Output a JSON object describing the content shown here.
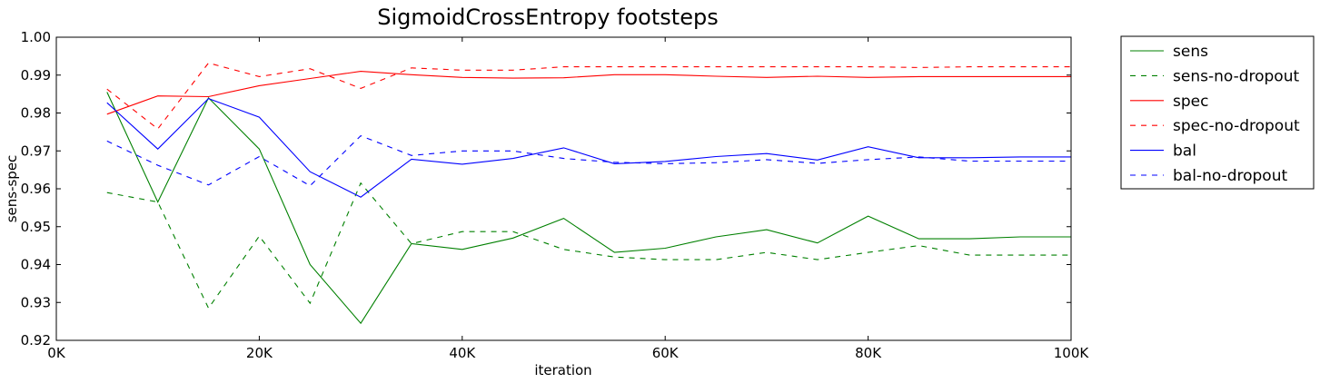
{
  "chart_data": {
    "type": "line",
    "title": "SigmoidCrossEntropy footsteps",
    "xlabel": "iteration",
    "ylabel": "sens-spec",
    "xlim": [
      0,
      100000
    ],
    "ylim": [
      0.92,
      1.0
    ],
    "x_ticks": [
      0,
      20000,
      40000,
      60000,
      80000,
      100000
    ],
    "x_tick_labels": [
      "0K",
      "20K",
      "40K",
      "60K",
      "80K",
      "100K"
    ],
    "y_ticks": [
      0.92,
      0.93,
      0.94,
      0.95,
      0.96,
      0.97,
      0.98,
      0.99,
      1.0
    ],
    "y_tick_labels": [
      "0.92",
      "0.93",
      "0.94",
      "0.95",
      "0.96",
      "0.97",
      "0.98",
      "0.99",
      "1.00"
    ],
    "grid": false,
    "legend_position": "outside-right",
    "x": [
      5000,
      10000,
      15000,
      20000,
      25000,
      30000,
      35000,
      40000,
      45000,
      50000,
      55000,
      60000,
      65000,
      70000,
      75000,
      80000,
      85000,
      90000,
      95000,
      100000
    ],
    "series": [
      {
        "name": "sens",
        "color": "#008000",
        "dash": "solid",
        "values": [
          0.9855,
          0.9565,
          0.984,
          0.9705,
          0.94,
          0.9245,
          0.9455,
          0.944,
          0.947,
          0.9522,
          0.9432,
          0.9443,
          0.9473,
          0.9492,
          0.9457,
          0.9528,
          0.9468,
          0.9468,
          0.9473,
          0.9473
        ]
      },
      {
        "name": "sens-no-dropout",
        "color": "#008000",
        "dash": "dashed",
        "values": [
          0.959,
          0.9565,
          0.9285,
          0.9475,
          0.9298,
          0.9615,
          0.9455,
          0.9487,
          0.9487,
          0.944,
          0.942,
          0.9413,
          0.9413,
          0.9432,
          0.9413,
          0.9432,
          0.945,
          0.9425,
          0.9425,
          0.9425
        ]
      },
      {
        "name": "spec",
        "color": "#ff0000",
        "dash": "solid",
        "values": [
          0.9797,
          0.9845,
          0.9843,
          0.9872,
          0.9891,
          0.991,
          0.9901,
          0.9894,
          0.9892,
          0.9893,
          0.9901,
          0.9901,
          0.9897,
          0.9894,
          0.9897,
          0.9894,
          0.9896,
          0.9896,
          0.9896,
          0.9896
        ]
      },
      {
        "name": "spec-no-dropout",
        "color": "#ff0000",
        "dash": "dashed",
        "values": [
          0.9863,
          0.9758,
          0.9932,
          0.9896,
          0.9917,
          0.9865,
          0.9919,
          0.9913,
          0.9913,
          0.9922,
          0.9922,
          0.9922,
          0.9922,
          0.9922,
          0.9922,
          0.9922,
          0.992,
          0.9922,
          0.9922,
          0.9922
        ]
      },
      {
        "name": "bal",
        "color": "#0000ff",
        "dash": "solid",
        "values": [
          0.9827,
          0.9705,
          0.9838,
          0.9789,
          0.9645,
          0.9578,
          0.9678,
          0.9665,
          0.968,
          0.9708,
          0.9666,
          0.9672,
          0.9685,
          0.9693,
          0.9676,
          0.9711,
          0.9682,
          0.9682,
          0.9684,
          0.9684
        ]
      },
      {
        "name": "bal-no-dropout",
        "color": "#0000ff",
        "dash": "dashed",
        "values": [
          0.9726,
          0.9662,
          0.961,
          0.9685,
          0.9608,
          0.974,
          0.9688,
          0.97,
          0.97,
          0.968,
          0.967,
          0.9666,
          0.9669,
          0.9677,
          0.9667,
          0.9677,
          0.9684,
          0.9673,
          0.9673,
          0.9673
        ]
      }
    ]
  }
}
